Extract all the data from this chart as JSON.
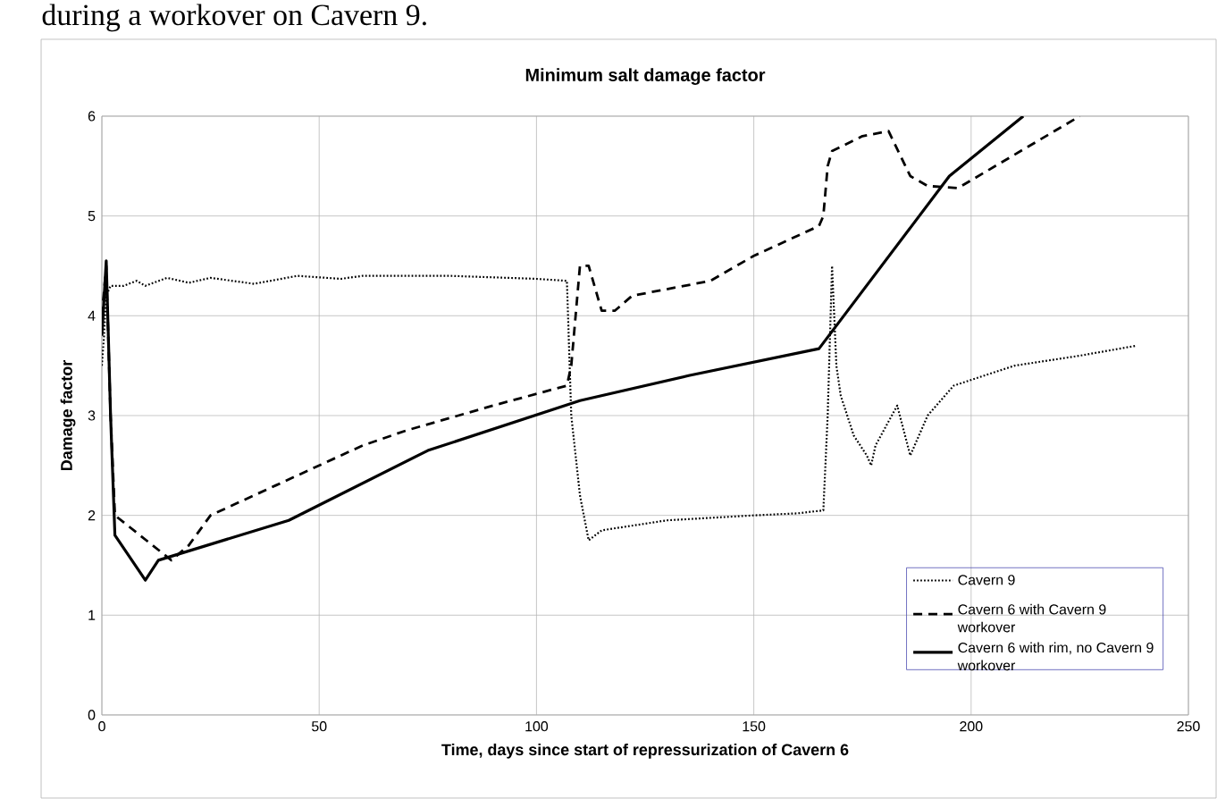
{
  "chart_data": {
    "type": "line",
    "title": "Minimum salt damage factor",
    "xlabel": "Time, days since start of repressurization of Cavern 6",
    "ylabel": "Damage factor",
    "annotations": [
      "during a workover on Cavern 9."
    ],
    "xlim": [
      0,
      250
    ],
    "xticks": [
      0,
      50,
      100,
      150,
      200,
      250
    ],
    "ylim": [
      0,
      6
    ],
    "yticks": [
      0,
      1,
      2,
      3,
      4,
      5,
      6
    ],
    "grid": true,
    "legend": "bottom right",
    "series": [
      {
        "name": "Cavern 9",
        "color": "#000000",
        "line_style": "dotted",
        "x": [
          0,
          0.5,
          1,
          2,
          5,
          8,
          10,
          15,
          20,
          25,
          35,
          45,
          55,
          60,
          80,
          100,
          107,
          108,
          110,
          112,
          115,
          130,
          150,
          160,
          166,
          167,
          168,
          169,
          170,
          173,
          176,
          177,
          178,
          183,
          186,
          190,
          196,
          210,
          225,
          238
        ],
        "values": [
          3.5,
          3.8,
          4.2,
          4.3,
          4.3,
          4.35,
          4.3,
          4.38,
          4.33,
          4.38,
          4.32,
          4.4,
          4.37,
          4.4,
          4.4,
          4.37,
          4.35,
          3.0,
          2.2,
          1.75,
          1.85,
          1.95,
          2.0,
          2.02,
          2.05,
          3.0,
          4.5,
          3.5,
          3.2,
          2.8,
          2.6,
          2.5,
          2.7,
          3.1,
          2.6,
          3.0,
          3.3,
          3.5,
          3.6,
          3.7
        ]
      },
      {
        "name": "Cavern 6 with Cavern 9 workover",
        "color": "#000000",
        "line_style": "dashed",
        "x": [
          0,
          1,
          2,
          3,
          16,
          20,
          25,
          40,
          60,
          70,
          90,
          107,
          108,
          109,
          110,
          112,
          115,
          118,
          122,
          140,
          150,
          165,
          166,
          167,
          168,
          175,
          181,
          186,
          190,
          197,
          225
        ],
        "values": [
          4.0,
          4.5,
          3.0,
          2.0,
          1.55,
          1.7,
          2.0,
          2.3,
          2.7,
          2.85,
          3.1,
          3.3,
          3.5,
          4.0,
          4.5,
          4.5,
          4.05,
          4.05,
          4.2,
          4.35,
          4.6,
          4.9,
          5.0,
          5.5,
          5.65,
          5.8,
          5.85,
          5.4,
          5.3,
          5.28,
          6.0
        ]
      },
      {
        "name": "Cavern 6 with rim, no Cavern 9 workover",
        "color": "#000000",
        "line_style": "solid",
        "x": [
          0,
          1,
          2,
          3,
          10,
          13,
          43,
          75,
          110,
          135,
          165,
          195,
          212
        ],
        "values": [
          3.8,
          4.55,
          3.0,
          1.8,
          1.35,
          1.55,
          1.95,
          2.65,
          3.15,
          3.4,
          3.67,
          5.4,
          6.0
        ]
      }
    ]
  }
}
